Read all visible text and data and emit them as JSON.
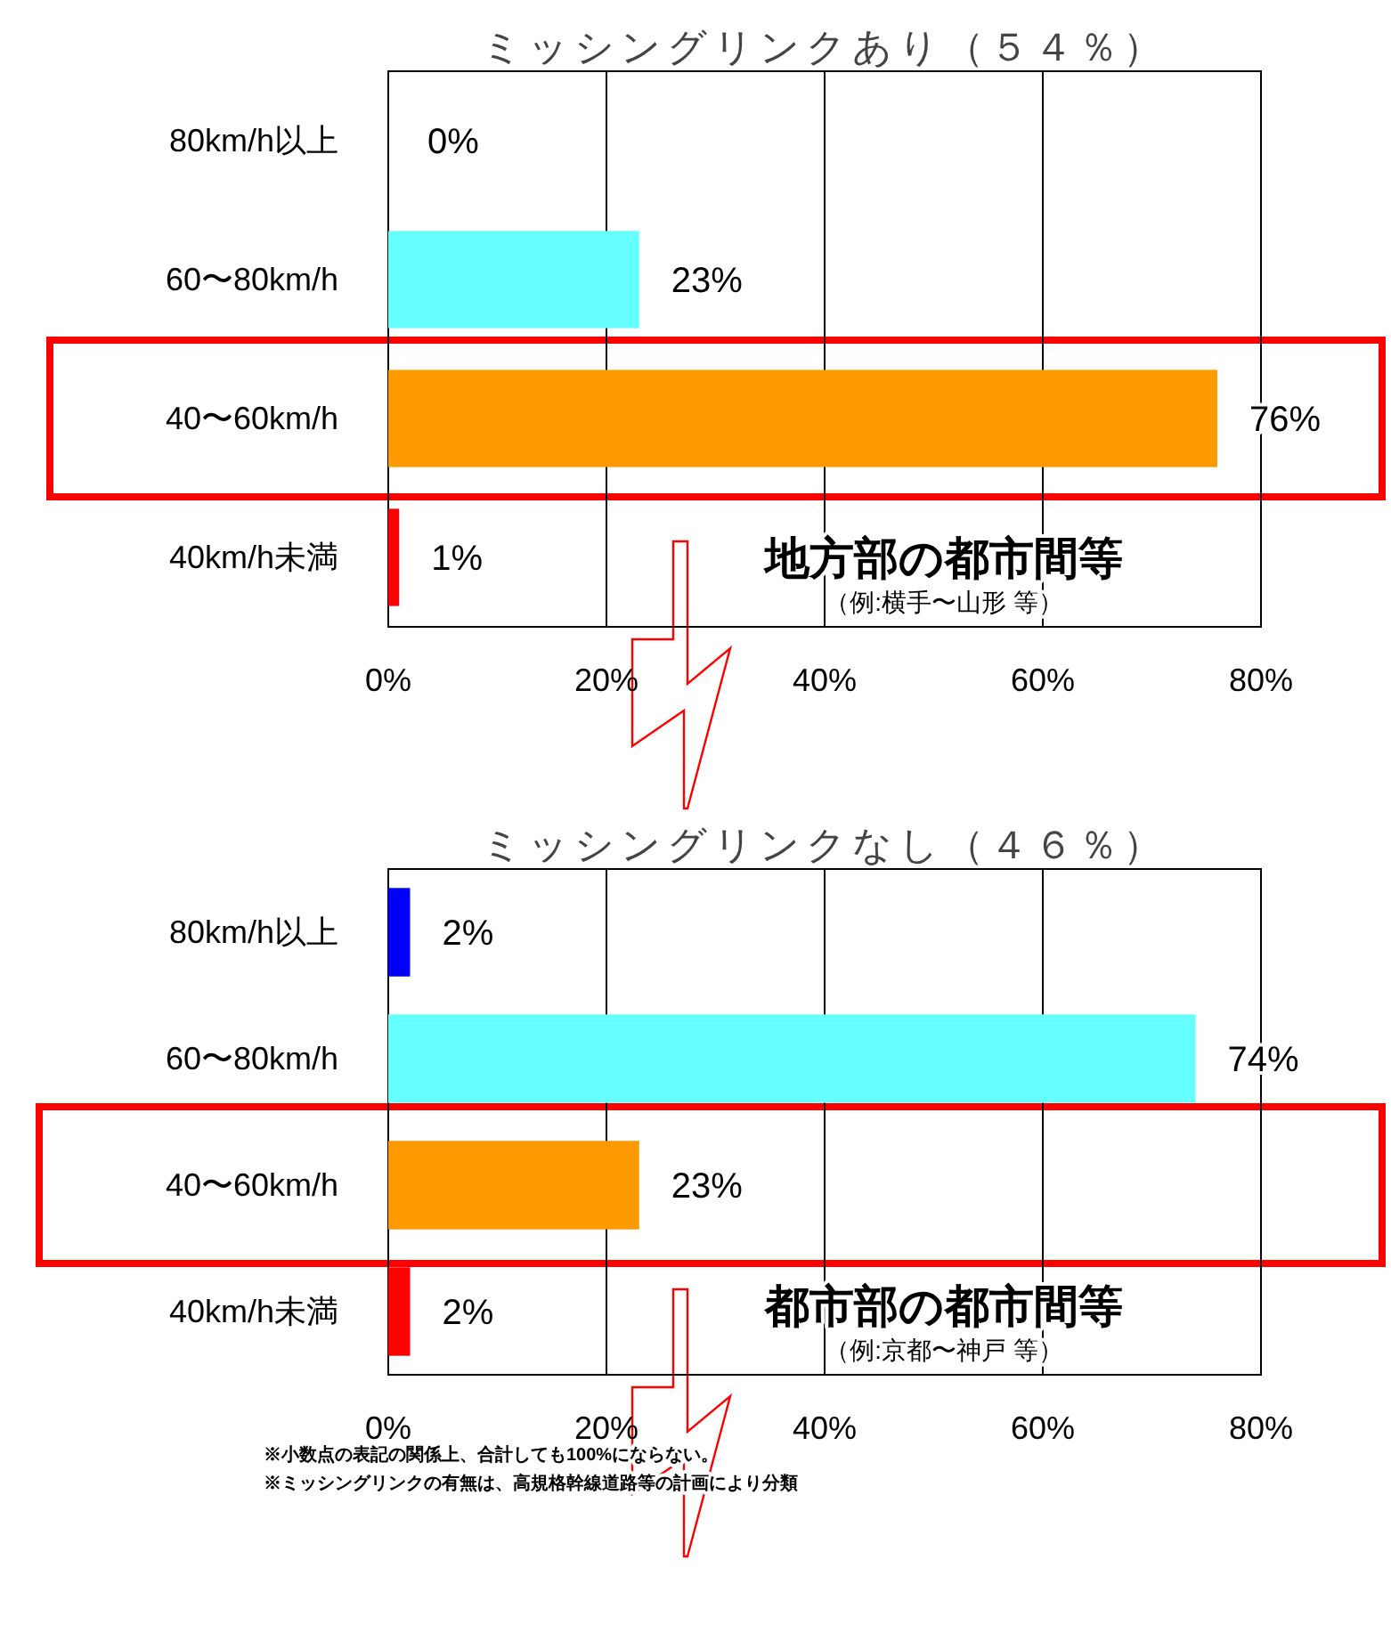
{
  "chart_data": [
    {
      "type": "bar",
      "orientation": "horizontal",
      "title": "ミッシングリンクあり（５４％）",
      "categories": [
        "80km/h以上",
        "60〜80km/h",
        "40〜60km/h",
        "40km/h未満"
      ],
      "values": [
        0,
        23,
        76,
        1
      ],
      "colors": [
        "#0000ff",
        "#66ffff",
        "#ff9900",
        "#ff0000"
      ],
      "value_labels": [
        "0%",
        "23%",
        "76%",
        "1%"
      ],
      "xlim": [
        0,
        80
      ],
      "xticks": [
        {
          "value": 0,
          "label": "0%"
        },
        {
          "value": 20,
          "label": "20%"
        },
        {
          "value": 40,
          "label": "40%"
        },
        {
          "value": 60,
          "label": "60%"
        },
        {
          "value": 80,
          "label": "80%"
        }
      ],
      "grid": "x",
      "annotations": [
        "地方部の都市間等",
        "（例:横手〜山形 等）"
      ]
    },
    {
      "type": "bar",
      "orientation": "horizontal",
      "title": "ミッシングリンクなし（４６％）",
      "categories": [
        "80km/h以上",
        "60〜80km/h",
        "40〜60km/h",
        "40km/h未満"
      ],
      "values": [
        2,
        74,
        23,
        2
      ],
      "colors": [
        "#0000ff",
        "#66ffff",
        "#ff9900",
        "#ff0000"
      ],
      "value_labels": [
        "2%",
        "74%",
        "23%",
        "2%"
      ],
      "xlim": [
        0,
        80
      ],
      "xticks": [
        {
          "value": 0,
          "label": "0%"
        },
        {
          "value": 20,
          "label": "20%"
        },
        {
          "value": 40,
          "label": "40%"
        },
        {
          "value": 60,
          "label": "60%"
        },
        {
          "value": 80,
          "label": "80%"
        }
      ],
      "grid": "x",
      "annotations": [
        "都市部の都市間等",
        "（例:京都〜神戸 等）",
        "※小数点の表記の関係上、合計しても100%にならない。",
        "※ミッシングリンクの有無は、高規格幹線道路等の計画により分類"
      ]
    }
  ]
}
